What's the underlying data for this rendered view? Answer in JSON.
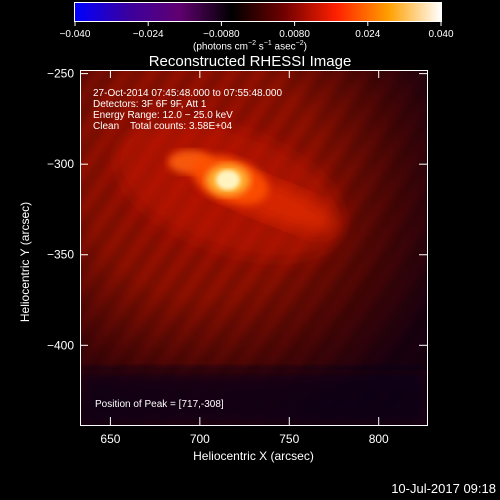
{
  "colorbar": {
    "ticks": [
      "−0.040",
      "−0.024",
      "−0.0080",
      "0.0080",
      "0.024",
      "0.040"
    ],
    "tick_values": [
      -0.04,
      -0.024,
      -0.008,
      0.008,
      0.024,
      0.04
    ],
    "range": [
      -0.04,
      0.04
    ],
    "label_prefix": "(photons cm",
    "sup1": "−2",
    "mid": " s",
    "sup2": "−1",
    "mid2": " asec",
    "sup3": "−2",
    "label_suffix": ")",
    "colors": [
      "#0000ff",
      "#3a00a0",
      "#600070",
      "#000000",
      "#700000",
      "#ff2000",
      "#ffa000",
      "#ffffff"
    ]
  },
  "chart_data": {
    "type": "heatmap",
    "title": "Reconstructed RHESSI Image",
    "xlabel": "Heliocentric X (arcsec)",
    "ylabel": "Heliocentric Y (arcsec)",
    "xlim": [
      633,
      827
    ],
    "ylim": [
      -444,
      -248
    ],
    "xticks": [
      650,
      700,
      750,
      800
    ],
    "yticks": [
      -250,
      -300,
      -350,
      -400
    ],
    "xtick_labels": [
      "650",
      "700",
      "750",
      "800"
    ],
    "ytick_labels": [
      "−250",
      "−300",
      "−350",
      "−400"
    ],
    "peak": [
      717,
      -308
    ],
    "info_lines": [
      "27-Oct-2014 07:45:48.000 to 07:55:48.000",
      "Detectors: 3F 6F 9F, Att 1",
      "Energy Range: 12.0 − 25.0 keV",
      "Clean    Total counts: 3.58E+04"
    ],
    "peak_label": "Position of Peak = [717,-308]"
  },
  "footer": {
    "timestamp": "10-Jul-2017 09:18"
  }
}
